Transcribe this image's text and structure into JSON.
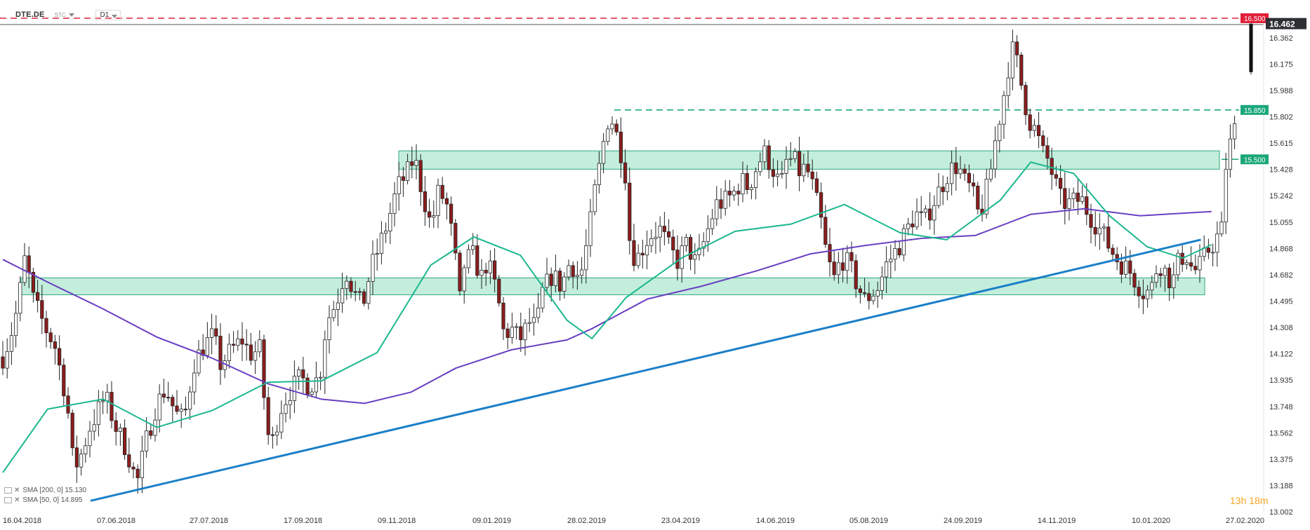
{
  "header": {
    "symbol": "DTE.DE",
    "sub": "STC",
    "timeframe": "D1"
  },
  "legend": [
    {
      "label": "SMA [200, 0] 15.130"
    },
    {
      "label": "SMA [50, 0] 14.895"
    }
  ],
  "timer": {
    "hours": "13",
    "h": "h",
    "minutes": "18",
    "m": "m"
  },
  "colors": {
    "bull": "#ffffff",
    "bear": "#8b1d1d",
    "sma50": "#1bb78e",
    "sma200": "#6a3fc3",
    "trendline": "#1a7fc8",
    "zone": "#b9ebd6",
    "zone_border": "#2fa981",
    "level_green": "#1aa77a",
    "level_red": "#e0203a"
  },
  "chart_data": {
    "type": "candlestick",
    "y_axis": {
      "min": 13.002,
      "max": 16.5,
      "ticks": [
        "16.362",
        "16.175",
        "15.988",
        "15.802",
        "15.615",
        "15.428",
        "15.242",
        "15.055",
        "14.868",
        "14.682",
        "14.495",
        "14.308",
        "14.122",
        "13.935",
        "13.748",
        "13.562",
        "13.375",
        "13.188",
        "13.002"
      ]
    },
    "x_axis": {
      "labels": [
        "16.04.2018",
        "07.06.2018",
        "27.07.2018",
        "17.09.2018",
        "09.11.2018",
        "09.01.2019",
        "28.02.2019",
        "23.04.2019",
        "14.06.2019",
        "05.08.2019",
        "24.09.2019",
        "14.11.2019",
        "10.01.2020",
        "27.02.2020"
      ]
    },
    "current_price": "16.462",
    "levels": [
      {
        "value": 16.5,
        "label": "16.500",
        "style": "dashed-red"
      },
      {
        "value": 15.85,
        "label": "15.850",
        "style": "dashed-green"
      },
      {
        "value": 15.5,
        "label": "15.500",
        "style": "dashed-green"
      }
    ],
    "zones": [
      {
        "from": 15.43,
        "to": 15.56
      },
      {
        "from": 14.54,
        "to": 14.66
      }
    ],
    "trendline": {
      "from": {
        "date": "2018-05-25",
        "price": 13.08
      },
      "to": {
        "date": "2020-02-04",
        "price": 14.93
      }
    },
    "series": [
      {
        "name": "SMA [200, 0] 15.130",
        "type": "line",
        "points": [
          [
            "2018-04-06",
            14.79
          ],
          [
            "2018-05-01",
            14.63
          ],
          [
            "2018-06-01",
            14.44
          ],
          [
            "2018-07-01",
            14.24
          ],
          [
            "2018-08-01",
            14.09
          ],
          [
            "2018-09-01",
            13.91
          ],
          [
            "2018-10-01",
            13.8
          ],
          [
            "2018-10-25",
            13.77
          ],
          [
            "2018-11-20",
            13.85
          ],
          [
            "2018-12-15",
            14.02
          ],
          [
            "2019-01-15",
            14.15
          ],
          [
            "2019-02-15",
            14.22
          ],
          [
            "2019-03-01",
            14.3
          ],
          [
            "2019-04-01",
            14.51
          ],
          [
            "2019-05-01",
            14.6
          ],
          [
            "2019-06-01",
            14.71
          ],
          [
            "2019-07-01",
            14.83
          ],
          [
            "2019-08-01",
            14.89
          ],
          [
            "2019-09-01",
            14.94
          ],
          [
            "2019-10-01",
            14.96
          ],
          [
            "2019-11-01",
            15.11
          ],
          [
            "2019-12-01",
            15.15
          ],
          [
            "2020-01-01",
            15.1
          ],
          [
            "2020-02-10",
            15.13
          ]
        ]
      },
      {
        "name": "SMA [50, 0] 14.895",
        "type": "line",
        "points": [
          [
            "2018-04-06",
            13.28
          ],
          [
            "2018-05-01",
            13.73
          ],
          [
            "2018-06-01",
            13.8
          ],
          [
            "2018-07-01",
            13.6
          ],
          [
            "2018-08-01",
            13.72
          ],
          [
            "2018-09-01",
            13.92
          ],
          [
            "2018-10-01",
            13.93
          ],
          [
            "2018-11-01",
            14.13
          ],
          [
            "2018-12-01",
            14.75
          ],
          [
            "2018-12-25",
            14.95
          ],
          [
            "2019-01-20",
            14.82
          ],
          [
            "2019-02-15",
            14.36
          ],
          [
            "2019-03-01",
            14.23
          ],
          [
            "2019-03-20",
            14.52
          ],
          [
            "2019-04-20",
            14.8
          ],
          [
            "2019-05-20",
            14.99
          ],
          [
            "2019-06-20",
            15.04
          ],
          [
            "2019-07-20",
            15.18
          ],
          [
            "2019-08-20",
            14.98
          ],
          [
            "2019-09-15",
            14.93
          ],
          [
            "2019-10-15",
            15.21
          ],
          [
            "2019-11-01",
            15.48
          ],
          [
            "2019-11-25",
            15.4
          ],
          [
            "2019-12-15",
            15.1
          ],
          [
            "2020-01-05",
            14.88
          ],
          [
            "2020-01-25",
            14.8
          ],
          [
            "2020-02-10",
            14.895
          ]
        ]
      }
    ]
  }
}
